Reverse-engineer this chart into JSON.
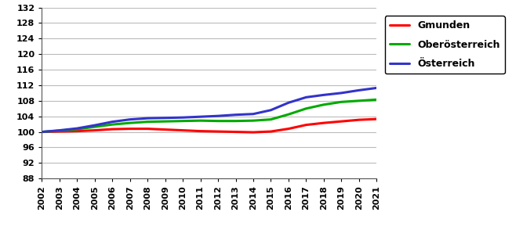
{
  "years": [
    2002,
    2003,
    2004,
    2005,
    2006,
    2007,
    2008,
    2009,
    2010,
    2011,
    2012,
    2013,
    2014,
    2015,
    2016,
    2017,
    2018,
    2019,
    2020,
    2021
  ],
  "gmunden": [
    100.0,
    100.1,
    100.2,
    100.4,
    100.7,
    100.8,
    100.8,
    100.6,
    100.4,
    100.2,
    100.1,
    100.0,
    99.9,
    100.1,
    100.8,
    101.8,
    102.3,
    102.7,
    103.1,
    103.3
  ],
  "oberoesterreich": [
    100.0,
    100.3,
    100.7,
    101.3,
    101.9,
    102.3,
    102.6,
    102.7,
    102.8,
    102.9,
    102.8,
    102.8,
    102.9,
    103.2,
    104.5,
    106.0,
    107.0,
    107.7,
    108.0,
    108.3
  ],
  "oesterreich": [
    100.0,
    100.4,
    100.9,
    101.7,
    102.6,
    103.2,
    103.5,
    103.6,
    103.7,
    103.9,
    104.1,
    104.4,
    104.6,
    105.6,
    107.5,
    108.9,
    109.5,
    110.0,
    110.7,
    111.3
  ],
  "colors": {
    "gmunden": "#ff0000",
    "oberoesterreich": "#00aa00",
    "oesterreich": "#3333cc"
  },
  "legend_labels": [
    "Gmunden",
    "Oberösterreich",
    "Österreich"
  ],
  "ylim": [
    88,
    132
  ],
  "yticks": [
    88,
    92,
    96,
    100,
    104,
    108,
    112,
    116,
    120,
    124,
    128,
    132
  ],
  "line_width": 2.2,
  "background_color": "#ffffff",
  "grid_color": "#bbbbbb"
}
